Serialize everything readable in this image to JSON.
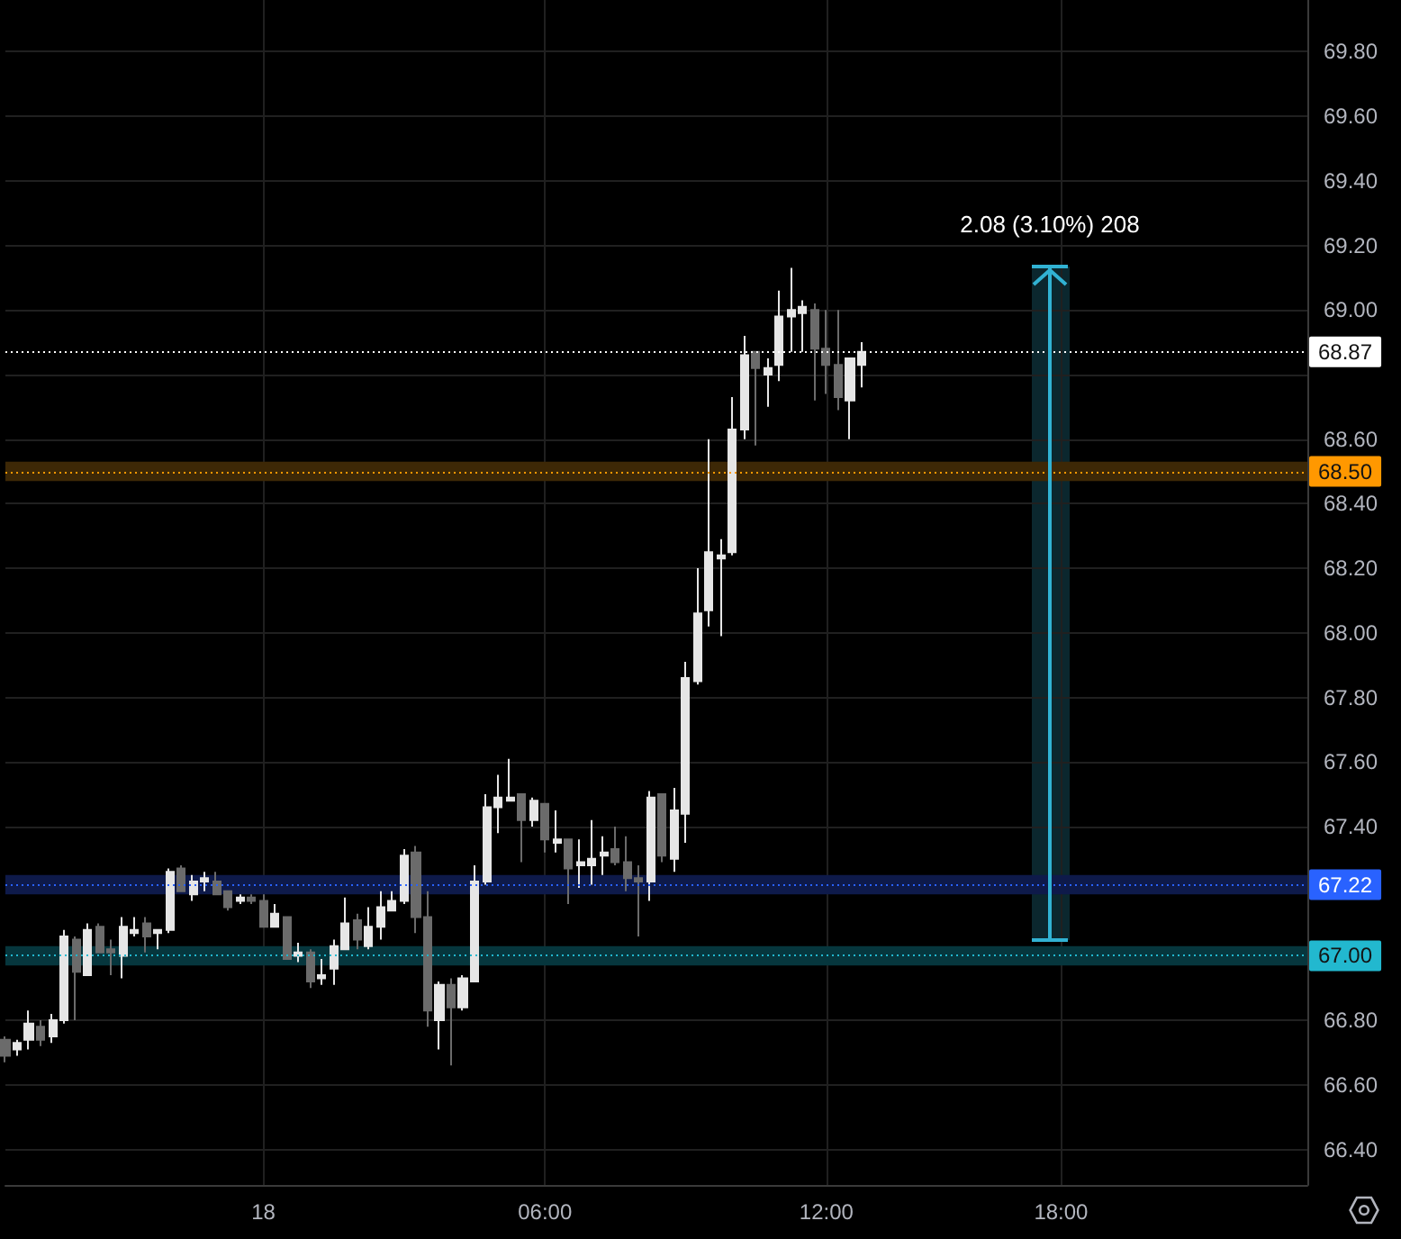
{
  "chart_data": {
    "type": "candlestick",
    "categories": [
      null,
      null,
      null,
      null,
      null,
      null,
      null,
      null,
      null,
      null,
      null,
      null,
      null,
      null,
      null,
      null,
      null,
      null,
      null,
      null,
      null,
      null,
      "18",
      null,
      null,
      null,
      null,
      null,
      null,
      null,
      null,
      null,
      null,
      null,
      null,
      null,
      null,
      null,
      null,
      null,
      null,
      null,
      null,
      null,
      null,
      null,
      "06:00",
      null,
      null,
      null,
      null,
      null,
      null,
      null,
      null,
      null,
      null,
      null,
      null,
      null,
      null,
      null,
      null,
      null,
      null,
      null,
      null,
      null,
      null,
      null,
      "12:00",
      null,
      null,
      null,
      null,
      null,
      null,
      null,
      null,
      null,
      null,
      null,
      null,
      null,
      null,
      null,
      null,
      null,
      null,
      null,
      "18:00",
      null,
      null,
      null,
      null,
      null,
      null,
      null,
      null,
      null,
      null,
      null,
      null,
      null,
      null,
      null,
      null,
      null,
      null,
      null,
      null,
      null
    ],
    "ohlc": [
      [
        66.74,
        66.75,
        66.67,
        66.69
      ],
      [
        66.71,
        66.74,
        66.69,
        66.73
      ],
      [
        66.74,
        66.83,
        66.71,
        66.79
      ],
      [
        66.78,
        66.8,
        66.72,
        66.74
      ],
      [
        66.75,
        66.82,
        66.73,
        66.8
      ],
      [
        66.8,
        67.08,
        66.79,
        67.06
      ],
      [
        67.05,
        67.06,
        66.8,
        66.95
      ],
      [
        66.94,
        67.1,
        66.94,
        67.08
      ],
      [
        67.09,
        67.1,
        67.01,
        67.01
      ],
      [
        67.02,
        67.05,
        66.94,
        67.01
      ],
      [
        67.0,
        67.12,
        66.93,
        67.09
      ],
      [
        67.07,
        67.12,
        67.06,
        67.08
      ],
      [
        67.1,
        67.12,
        67.01,
        67.06
      ],
      [
        67.07,
        67.08,
        67.02,
        67.08
      ],
      [
        67.08,
        67.27,
        67.07,
        67.26
      ],
      [
        67.27,
        67.28,
        67.2,
        67.2
      ],
      [
        67.19,
        67.25,
        67.17,
        67.23
      ],
      [
        67.23,
        67.26,
        67.2,
        67.24
      ],
      [
        67.23,
        67.26,
        67.19,
        67.19
      ],
      [
        67.2,
        67.2,
        67.14,
        67.15
      ],
      [
        67.17,
        67.19,
        67.16,
        67.18
      ],
      [
        67.18,
        67.19,
        67.16,
        67.17
      ],
      [
        67.17,
        67.19,
        67.09,
        67.09
      ],
      [
        67.09,
        67.16,
        67.09,
        67.13
      ],
      [
        67.12,
        67.12,
        66.99,
        66.99
      ],
      [
        67.0,
        67.04,
        66.98,
        67.01
      ],
      [
        67.01,
        67.02,
        66.9,
        66.92
      ],
      [
        66.93,
        66.99,
        66.91,
        66.94
      ],
      [
        66.96,
        67.05,
        66.91,
        67.03
      ],
      [
        67.02,
        67.18,
        67.02,
        67.1
      ],
      [
        67.11,
        67.13,
        67.02,
        67.05
      ],
      [
        67.03,
        67.15,
        67.02,
        67.09
      ],
      [
        67.09,
        67.2,
        67.05,
        67.15
      ],
      [
        67.14,
        67.2,
        67.14,
        67.17
      ],
      [
        67.17,
        67.33,
        67.16,
        67.31
      ],
      [
        67.32,
        67.34,
        67.07,
        67.12
      ],
      [
        67.12,
        67.2,
        66.78,
        66.83
      ],
      [
        66.8,
        66.92,
        66.71,
        66.91
      ],
      [
        66.91,
        66.93,
        66.66,
        66.84
      ],
      [
        66.84,
        66.94,
        66.83,
        66.93
      ],
      [
        66.92,
        67.28,
        66.92,
        67.23
      ],
      [
        67.23,
        67.5,
        67.22,
        67.46
      ],
      [
        67.46,
        67.56,
        67.38,
        67.49
      ],
      [
        67.48,
        67.61,
        67.48,
        67.49
      ],
      [
        67.5,
        67.5,
        67.29,
        67.42
      ],
      [
        67.42,
        67.49,
        67.4,
        67.48
      ],
      [
        67.47,
        67.47,
        67.32,
        67.36
      ],
      [
        67.35,
        67.45,
        67.32,
        67.36
      ],
      [
        67.36,
        67.36,
        67.16,
        67.27
      ],
      [
        67.28,
        67.36,
        67.21,
        67.29
      ],
      [
        67.28,
        67.42,
        67.22,
        67.3
      ],
      [
        67.31,
        67.37,
        67.25,
        67.32
      ],
      [
        67.33,
        67.4,
        67.28,
        67.29
      ],
      [
        67.29,
        67.37,
        67.2,
        67.24
      ],
      [
        67.24,
        67.28,
        67.06,
        67.23
      ],
      [
        67.23,
        67.51,
        67.17,
        67.49
      ],
      [
        67.5,
        67.5,
        67.29,
        67.31
      ],
      [
        67.3,
        67.52,
        67.26,
        67.45
      ],
      [
        67.44,
        67.91,
        67.35,
        67.86
      ],
      [
        67.85,
        68.2,
        67.84,
        68.06
      ],
      [
        68.07,
        68.6,
        68.02,
        68.25
      ],
      [
        68.23,
        68.29,
        67.99,
        68.24
      ],
      [
        68.25,
        68.73,
        68.24,
        68.63
      ],
      [
        68.63,
        68.92,
        68.6,
        68.86
      ],
      [
        68.87,
        68.87,
        68.58,
        68.82
      ],
      [
        68.8,
        68.85,
        68.7,
        68.82
      ],
      [
        68.83,
        69.06,
        68.78,
        68.98
      ],
      [
        68.98,
        69.13,
        68.87,
        69.0
      ],
      [
        68.99,
        69.03,
        68.87,
        69.01
      ],
      [
        69.0,
        69.02,
        68.72,
        68.88
      ],
      [
        68.88,
        69.0,
        68.74,
        68.83
      ],
      [
        68.83,
        69.0,
        68.69,
        68.73
      ],
      [
        68.72,
        68.85,
        68.6,
        68.85
      ],
      [
        68.83,
        68.9,
        68.76,
        68.87
      ],
      null,
      null,
      null,
      null,
      null,
      null,
      null,
      null,
      null,
      null,
      null,
      null,
      null,
      null,
      null,
      null,
      null,
      null,
      null,
      null,
      null,
      null,
      null,
      null,
      null,
      null,
      null,
      null,
      null,
      null,
      null,
      null,
      null,
      null,
      null,
      null,
      null,
      null
    ],
    "colors": [
      "#6b6b6b",
      "#e6e6e6",
      "#e6e6e6",
      "#6b6b6b",
      "#e6e6e6",
      "#e6e6e6",
      "#6b6b6b",
      "#e6e6e6",
      "#6b6b6b",
      "#6b6b6b",
      "#e6e6e6",
      "#e6e6e6",
      "#6b6b6b",
      "#e6e6e6",
      "#e6e6e6",
      "#6b6b6b",
      "#e6e6e6",
      "#e6e6e6",
      "#6b6b6b",
      "#6b6b6b",
      "#e6e6e6",
      "#6b6b6b",
      "#6b6b6b",
      "#e6e6e6",
      "#6b6b6b",
      "#e6e6e6",
      "#6b6b6b",
      "#e6e6e6",
      "#e6e6e6",
      "#e6e6e6",
      "#6b6b6b",
      "#e6e6e6",
      "#e6e6e6",
      "#e6e6e6",
      "#e6e6e6",
      "#6b6b6b",
      "#6b6b6b",
      "#e6e6e6",
      "#6b6b6b",
      "#e6e6e6",
      "#e6e6e6",
      "#e6e6e6",
      "#e6e6e6",
      "#e6e6e6",
      "#6b6b6b",
      "#e6e6e6",
      "#6b6b6b",
      "#e6e6e6",
      "#6b6b6b",
      "#e6e6e6",
      "#e6e6e6",
      "#e6e6e6",
      "#6b6b6b",
      "#6b6b6b",
      "#6b6b6b",
      "#e6e6e6",
      "#6b6b6b",
      "#e6e6e6",
      "#e6e6e6",
      "#e6e6e6",
      "#e6e6e6",
      "#e6e6e6",
      "#e6e6e6",
      "#e6e6e6",
      "#6b6b6b",
      "#e6e6e6",
      "#e6e6e6",
      "#e6e6e6",
      "#e6e6e6",
      "#6b6b6b",
      "#6b6b6b",
      "#6b6b6b",
      "#e6e6e6",
      "#e6e6e6",
      null,
      null,
      null,
      null,
      null,
      null,
      null,
      null,
      null,
      null,
      null,
      null,
      null,
      null,
      null,
      null,
      null,
      null,
      null,
      null,
      null,
      null,
      null,
      null,
      null,
      null,
      null,
      null,
      null,
      null,
      null,
      null,
      null,
      null,
      null,
      null,
      null,
      null
    ],
    "ylim": [
      66.29,
      69.96
    ],
    "yticks": [
      {
        "value": 66.4,
        "label": "66.40"
      },
      {
        "value": 66.6,
        "label": "66.60"
      },
      {
        "value": 66.8,
        "label": "66.80"
      },
      {
        "value": 67.0,
        "label": null
      },
      {
        "value": 67.4,
        "label": "67.40"
      },
      {
        "value": 67.6,
        "label": "67.60"
      },
      {
        "value": 67.8,
        "label": "67.80"
      },
      {
        "value": 68.0,
        "label": "68.00"
      },
      {
        "value": 68.2,
        "label": "68.20"
      },
      {
        "value": 68.4,
        "label": "68.40"
      },
      {
        "value": 68.6,
        "label": "68.60"
      },
      {
        "value": 68.8,
        "label": null
      },
      {
        "value": 69.0,
        "label": "69.00"
      },
      {
        "value": 69.2,
        "label": "69.20"
      },
      {
        "value": 69.4,
        "label": "69.40"
      },
      {
        "value": 69.6,
        "label": "69.60"
      },
      {
        "value": 69.8,
        "label": "69.80"
      }
    ],
    "grid": true,
    "ref_lines": [
      {
        "axis": "y",
        "value": 68.87,
        "label": "68.87",
        "color": "#ffffff",
        "line_style": "dotted"
      },
      {
        "axis": "y",
        "value": 68.5,
        "label": "68.50",
        "color": "#ff9800",
        "line_style": "dotted"
      },
      {
        "axis": "y",
        "value": 67.22,
        "label": "67.22",
        "color": "#2962ff",
        "line_style": "dotted"
      },
      {
        "axis": "y",
        "value": 67.0,
        "label": "67.00",
        "color": "#22b8cf",
        "line_style": "dotted"
      }
    ],
    "bands": [
      {
        "axis": "y",
        "from": 68.47,
        "to": 68.53,
        "color": "#3d2806"
      },
      {
        "axis": "y",
        "from": 67.19,
        "to": 67.25,
        "color": "#0e1a4a"
      },
      {
        "axis": "y",
        "from": 66.97,
        "to": 67.03,
        "color": "#06363d"
      }
    ],
    "annotations": [
      "2.08 (3.10%) 208"
    ]
  }
}
